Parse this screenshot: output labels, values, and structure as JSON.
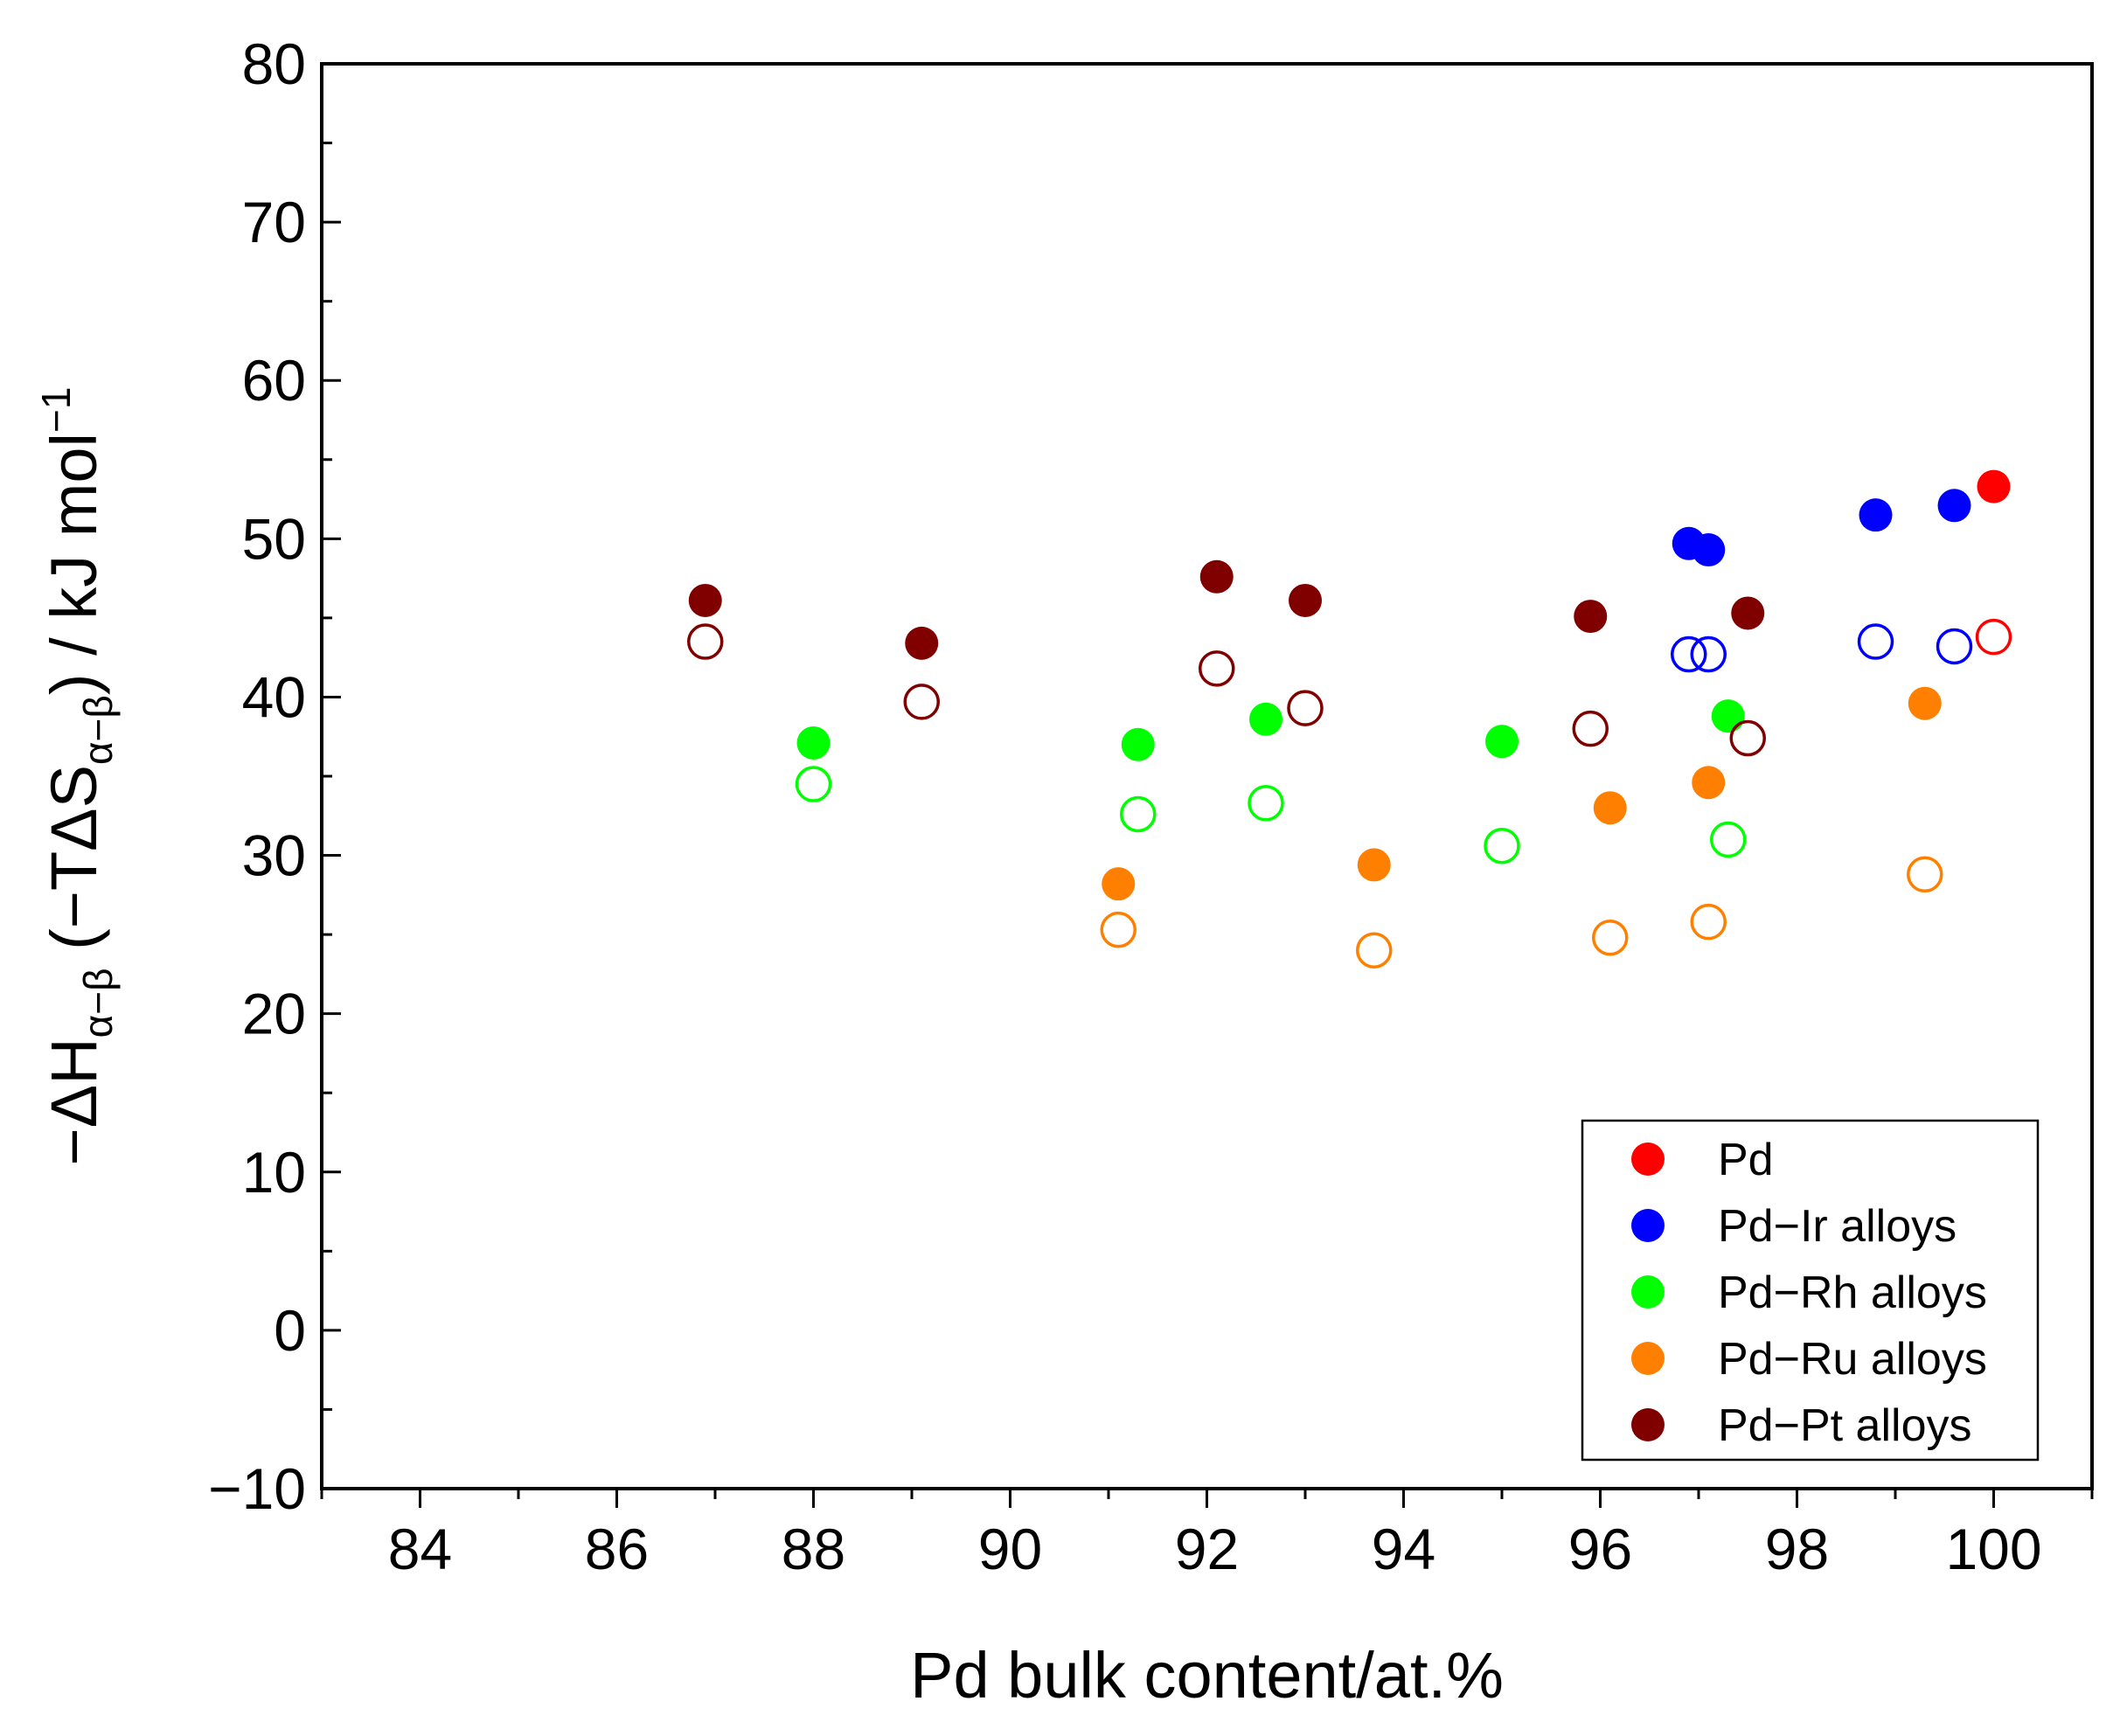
{
  "chart_data": {
    "type": "scatter",
    "xlabel": "Pd bulk content/at.%",
    "ylabel": {
      "prefix": "−ΔH",
      "sub1": "α−β",
      "mid": " (−TΔS",
      "sub2": "α−β",
      "suffix": ") / kJ mol",
      "sup": "−1"
    },
    "xlim": [
      83,
      101
    ],
    "ylim": [
      -10,
      80
    ],
    "xticks": [
      84,
      86,
      88,
      90,
      92,
      94,
      96,
      98,
      100
    ],
    "yticks": [
      -10,
      0,
      10,
      20,
      30,
      40,
      50,
      60,
      70,
      80
    ],
    "xtick_labels": [
      "84",
      "86",
      "88",
      "90",
      "92",
      "94",
      "96",
      "98",
      "100"
    ],
    "ytick_labels": [
      "−10",
      "0",
      "10",
      "20",
      "30",
      "40",
      "50",
      "60",
      "70",
      "80"
    ],
    "filled_meaning": "-ΔH",
    "open_meaning": "-TΔS",
    "series": [
      {
        "name": "Pd",
        "color": "#ff0000",
        "points": [
          {
            "x": 100.0,
            "filled": 53.3,
            "open": 43.8
          }
        ]
      },
      {
        "name": "Pd−Ir alloys",
        "color": "#0000ff",
        "points": [
          {
            "x": 96.9,
            "filled": 49.7,
            "open": 42.7
          },
          {
            "x": 97.1,
            "filled": 49.3,
            "open": 42.7
          },
          {
            "x": 98.8,
            "filled": 51.5,
            "open": 43.5
          },
          {
            "x": 99.6,
            "filled": 52.1,
            "open": 43.2
          }
        ]
      },
      {
        "name": "Pd−Rh alloys",
        "color": "#00ff00",
        "points": [
          {
            "x": 88.0,
            "filled": 37.1,
            "open": 34.5
          },
          {
            "x": 91.3,
            "filled": 37.0,
            "open": 32.6
          },
          {
            "x": 92.6,
            "filled": 38.6,
            "open": 33.3
          },
          {
            "x": 95.0,
            "filled": 37.2,
            "open": 30.6
          },
          {
            "x": 97.3,
            "filled": 38.8,
            "open": 31.0
          }
        ]
      },
      {
        "name": "Pd−Ru alloys",
        "color": "#ff8000",
        "points": [
          {
            "x": 91.1,
            "filled": 28.2,
            "open": 25.3
          },
          {
            "x": 93.7,
            "filled": 29.4,
            "open": 24.0
          },
          {
            "x": 96.1,
            "filled": 33.0,
            "open": 24.8
          },
          {
            "x": 97.1,
            "filled": 34.6,
            "open": 25.8
          },
          {
            "x": 99.3,
            "filled": 39.6,
            "open": 28.8
          }
        ]
      },
      {
        "name": "Pd−Pt alloys",
        "color": "#800000",
        "points": [
          {
            "x": 86.9,
            "filled": 46.1,
            "open": 43.5
          },
          {
            "x": 89.1,
            "filled": 43.4,
            "open": 39.7
          },
          {
            "x": 92.1,
            "filled": 47.6,
            "open": 41.8
          },
          {
            "x": 93.0,
            "filled": 46.1,
            "open": 39.3
          },
          {
            "x": 95.9,
            "filled": 45.1,
            "open": 38.0
          },
          {
            "x": 97.5,
            "filled": 45.3,
            "open": 37.4
          }
        ]
      }
    ],
    "legend": {
      "position": "lower-right"
    }
  }
}
